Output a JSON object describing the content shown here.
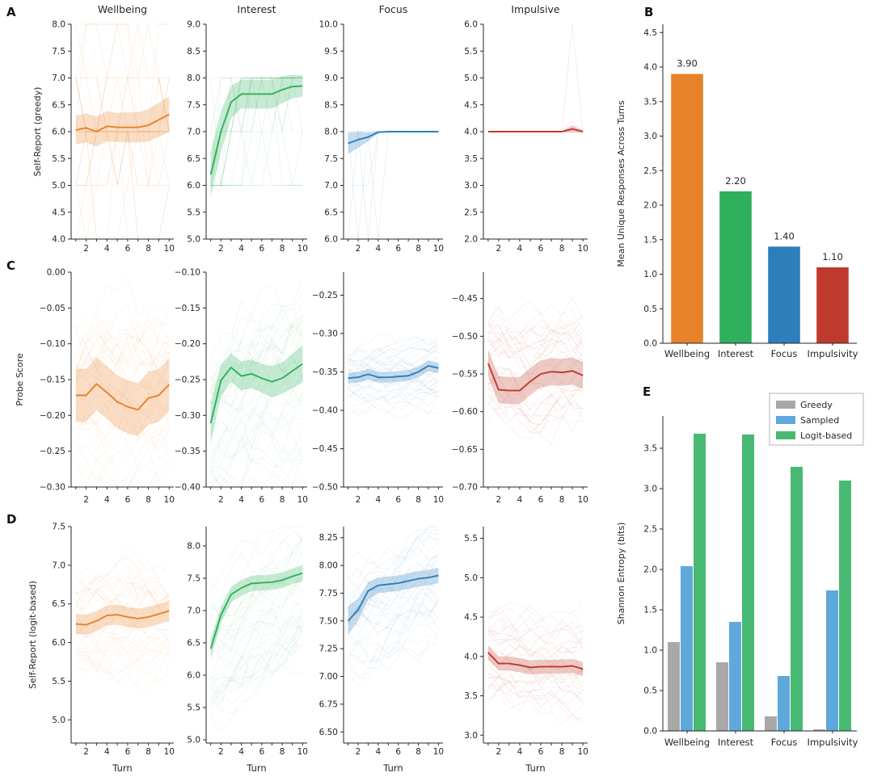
{
  "panels": {
    "A": "A",
    "B": "B",
    "C": "C",
    "D": "D",
    "E": "E"
  },
  "colors": {
    "orange": "#E8822A",
    "green": "#2EB05C",
    "blue": "#2E7EBC",
    "red": "#BE3A2C",
    "gray": "#A8A8A8",
    "skyblue": "#5FA8DC",
    "green_e": "#47B972",
    "axis": "#262626",
    "text": "#262626"
  },
  "chart_data": {
    "rows": [
      {
        "panel": "A",
        "ylabel": "Self-Report (greedy)",
        "show_titles": true,
        "xlabel": null,
        "x_tick_labels": [
          2,
          4,
          6,
          8,
          10
        ],
        "charts": [
          {
            "title": "Wellbeing",
            "color_key": "orange",
            "type": "line",
            "x": [
              1,
              2,
              3,
              4,
              5,
              6,
              7,
              8,
              9,
              10
            ],
            "mean": [
              6.03,
              6.07,
              6.0,
              6.1,
              6.08,
              6.08,
              6.08,
              6.12,
              6.22,
              6.32
            ],
            "band": [
              0.27,
              0.27,
              0.28,
              0.28,
              0.27,
              0.28,
              0.28,
              0.3,
              0.32,
              0.33
            ],
            "ylim": [
              4.0,
              8.0
            ],
            "yticks": [
              4.0,
              4.5,
              5.0,
              5.5,
              6.0,
              6.5,
              7.0,
              7.5,
              8.0
            ],
            "ydec": 1,
            "faint": {
              "mode": "int",
              "count": 22,
              "clamp": [
                4,
                8
              ]
            }
          },
          {
            "title": "Interest",
            "color_key": "green",
            "type": "line",
            "x": [
              1,
              2,
              3,
              4,
              5,
              6,
              7,
              8,
              9,
              10
            ],
            "mean": [
              6.2,
              7.0,
              7.55,
              7.7,
              7.7,
              7.7,
              7.7,
              7.78,
              7.84,
              7.85
            ],
            "band": [
              0.42,
              0.38,
              0.3,
              0.27,
              0.27,
              0.27,
              0.27,
              0.25,
              0.22,
              0.2
            ],
            "ylim": [
              5.0,
              9.0
            ],
            "yticks": [
              5.0,
              5.5,
              6.0,
              6.5,
              7.0,
              7.5,
              8.0,
              8.5,
              9.0
            ],
            "ydec": 1,
            "faint": {
              "mode": "int",
              "count": 16,
              "clamp": [
                6,
                8
              ]
            }
          },
          {
            "title": "Focus",
            "color_key": "blue",
            "type": "line",
            "x": [
              1,
              2,
              3,
              4,
              5,
              6,
              7,
              8,
              9,
              10
            ],
            "mean": [
              7.78,
              7.85,
              7.9,
              7.99,
              8.0,
              8.0,
              8.0,
              8.0,
              8.0,
              8.0
            ],
            "band": [
              0.2,
              0.15,
              0.08,
              0.02,
              0.005,
              0.005,
              0.005,
              0.005,
              0.005,
              0.005
            ],
            "ylim": [
              6.0,
              10.0
            ],
            "yticks": [
              6.0,
              6.5,
              7.0,
              7.5,
              8.0,
              8.5,
              9.0,
              9.5,
              10.0
            ],
            "ydec": 1,
            "faint": {
              "mode": "paths",
              "paths": [
                [
                  8,
                  6,
                  8,
                  8,
                  8,
                  8,
                  8,
                  8,
                  8,
                  8
                ],
                [
                  6,
                  8,
                  8,
                  8,
                  8,
                  8,
                  8,
                  8,
                  8,
                  8
                ],
                [
                  8,
                  8,
                  6,
                  8,
                  8,
                  8,
                  8,
                  8,
                  8,
                  8
                ],
                [
                  7,
                  7,
                  7,
                  8,
                  8,
                  8,
                  8,
                  8,
                  8,
                  8
                ],
                [
                  8,
                  8,
                  8,
                  6,
                  8,
                  8,
                  8,
                  8,
                  8,
                  8
                ]
              ]
            }
          },
          {
            "title": "Impulsive",
            "color_key": "red",
            "type": "line",
            "x": [
              1,
              2,
              3,
              4,
              5,
              6,
              7,
              8,
              9,
              10
            ],
            "mean": [
              4.0,
              4.0,
              4.0,
              4.0,
              4.0,
              4.0,
              4.0,
              4.0,
              4.05,
              4.0
            ],
            "band": [
              0.01,
              0.01,
              0.01,
              0.01,
              0.01,
              0.01,
              0.01,
              0.012,
              0.07,
              0.02
            ],
            "ylim": [
              2.0,
              6.0
            ],
            "yticks": [
              2.0,
              2.5,
              3.0,
              3.5,
              4.0,
              4.5,
              5.0,
              5.5,
              6.0
            ],
            "ydec": 1,
            "faint": {
              "mode": "paths",
              "paths": [
                [
                  4,
                  4,
                  4,
                  4,
                  4,
                  4,
                  4,
                  4,
                  6,
                  4
                ],
                [
                  4,
                  4,
                  4,
                  4,
                  4,
                  4,
                  4,
                  4,
                  4.2,
                  4
                ]
              ]
            }
          }
        ]
      },
      {
        "panel": "C",
        "ylabel": "Probe Score",
        "show_titles": false,
        "xlabel": null,
        "x_tick_labels": [
          2,
          4,
          6,
          8,
          10
        ],
        "charts": [
          {
            "title": null,
            "color_key": "orange",
            "type": "line",
            "x": [
              1,
              2,
              3,
              4,
              5,
              6,
              7,
              8,
              9,
              10
            ],
            "mean": [
              -0.172,
              -0.172,
              -0.156,
              -0.168,
              -0.181,
              -0.188,
              -0.192,
              -0.176,
              -0.172,
              -0.157
            ],
            "band": 0.037,
            "ylim": [
              -0.3,
              0.0
            ],
            "yticks": [
              0.0,
              -0.05,
              -0.1,
              -0.15,
              -0.2,
              -0.25,
              -0.3
            ],
            "ydec": 2,
            "faint": {
              "mode": "smooth",
              "count": 36,
              "amp": 0.1
            }
          },
          {
            "title": null,
            "color_key": "green",
            "type": "line",
            "x": [
              1,
              2,
              3,
              4,
              5,
              6,
              7,
              8,
              9,
              10
            ],
            "mean": [
              -0.311,
              -0.251,
              -0.233,
              -0.245,
              -0.242,
              -0.248,
              -0.253,
              -0.248,
              -0.238,
              -0.228
            ],
            "band": [
              0.028,
              0.022,
              0.02,
              0.02,
              0.02,
              0.02,
              0.022,
              0.022,
              0.024,
              0.026
            ],
            "ylim": [
              -0.4,
              -0.1
            ],
            "yticks": [
              -0.1,
              -0.15,
              -0.2,
              -0.25,
              -0.3,
              -0.35,
              -0.4
            ],
            "ydec": 2,
            "faint": {
              "mode": "smooth",
              "count": 36,
              "amp": 0.095
            }
          },
          {
            "title": null,
            "color_key": "blue",
            "type": "line",
            "x": [
              1,
              2,
              3,
              4,
              5,
              6,
              7,
              8,
              9,
              10
            ],
            "mean": [
              -0.358,
              -0.357,
              -0.353,
              -0.357,
              -0.357,
              -0.356,
              -0.355,
              -0.35,
              -0.342,
              -0.345
            ],
            "band": 0.007,
            "ylim": [
              -0.5,
              -0.22
            ],
            "yticks": [
              -0.25,
              -0.3,
              -0.35,
              -0.4,
              -0.45,
              -0.5
            ],
            "ydec": 2,
            "faint": {
              "mode": "smooth",
              "count": 36,
              "amp": 0.035
            }
          },
          {
            "title": null,
            "color_key": "red",
            "type": "line",
            "x": [
              1,
              2,
              3,
              4,
              5,
              6,
              7,
              8,
              9,
              10
            ],
            "mean": [
              -0.536,
              -0.571,
              -0.572,
              -0.572,
              -0.56,
              -0.55,
              -0.547,
              -0.548,
              -0.546,
              -0.552
            ],
            "band": 0.018,
            "ylim": [
              -0.7,
              -0.415
            ],
            "yticks": [
              -0.45,
              -0.5,
              -0.55,
              -0.6,
              -0.65,
              -0.7
            ],
            "ydec": 2,
            "faint": {
              "mode": "smooth",
              "count": 36,
              "amp": 0.065
            }
          }
        ]
      },
      {
        "panel": "D",
        "ylabel": "Self-Report (logit-based)",
        "show_titles": false,
        "xlabel": "Turn",
        "x_tick_labels": [
          2,
          4,
          6,
          8,
          10
        ],
        "charts": [
          {
            "title": null,
            "color_key": "orange",
            "type": "line",
            "x": [
              1,
              2,
              3,
              4,
              5,
              6,
              7,
              8,
              9,
              10
            ],
            "mean": [
              6.24,
              6.23,
              6.28,
              6.35,
              6.36,
              6.33,
              6.31,
              6.33,
              6.37,
              6.41
            ],
            "band": 0.13,
            "ylim": [
              4.7,
              7.5
            ],
            "yticks": [
              5.0,
              5.5,
              6.0,
              6.5,
              7.0,
              7.5
            ],
            "ydec": 1,
            "faint": {
              "mode": "smooth",
              "count": 34,
              "amp": 0.6
            }
          },
          {
            "title": null,
            "color_key": "green",
            "type": "line",
            "x": [
              1,
              2,
              3,
              4,
              5,
              6,
              7,
              8,
              9,
              10
            ],
            "mean": [
              6.41,
              6.93,
              7.25,
              7.35,
              7.42,
              7.43,
              7.44,
              7.47,
              7.53,
              7.58
            ],
            "band": [
              0.15,
              0.13,
              0.12,
              0.12,
              0.12,
              0.12,
              0.12,
              0.12,
              0.12,
              0.13
            ],
            "ylim": [
              4.95,
              8.3
            ],
            "yticks": [
              5.0,
              5.5,
              6.0,
              6.5,
              7.0,
              7.5,
              8.0
            ],
            "ydec": 1,
            "faint": {
              "mode": "smooth",
              "count": 34,
              "amp": 0.85
            }
          },
          {
            "title": null,
            "color_key": "blue",
            "type": "line",
            "x": [
              1,
              2,
              3,
              4,
              5,
              6,
              7,
              8,
              9,
              10
            ],
            "mean": [
              7.5,
              7.6,
              7.77,
              7.82,
              7.83,
              7.84,
              7.86,
              7.88,
              7.89,
              7.91
            ],
            "band": [
              0.13,
              0.1,
              0.08,
              0.07,
              0.07,
              0.07,
              0.07,
              0.07,
              0.07,
              0.07
            ],
            "ylim": [
              6.4,
              8.35
            ],
            "yticks": [
              6.5,
              6.75,
              7.0,
              7.25,
              7.5,
              7.75,
              8.0,
              8.25
            ],
            "ydec": 2,
            "faint": {
              "mode": "smooth",
              "count": 34,
              "amp": 0.42
            }
          },
          {
            "title": null,
            "color_key": "red",
            "type": "line",
            "x": [
              1,
              2,
              3,
              4,
              5,
              6,
              7,
              8,
              9,
              10
            ],
            "mean": [
              4.05,
              3.91,
              3.91,
              3.89,
              3.86,
              3.87,
              3.87,
              3.87,
              3.88,
              3.84
            ],
            "band": 0.09,
            "ylim": [
              2.9,
              5.65
            ],
            "yticks": [
              3.0,
              3.5,
              4.0,
              4.5,
              5.0,
              5.5
            ],
            "ydec": 1,
            "faint": {
              "mode": "smooth",
              "count": 34,
              "amp": 0.5
            }
          }
        ]
      }
    ],
    "panel_B": {
      "type": "bar",
      "ylabel": "Mean Unique Responses Across Turns",
      "categories": [
        "Wellbeing",
        "Interest",
        "Focus",
        "Impulsivity"
      ],
      "values": [
        3.9,
        2.2,
        1.4,
        1.1
      ],
      "value_labels": [
        "3.90",
        "2.20",
        "1.40",
        "1.10"
      ],
      "bar_color_keys": [
        "orange",
        "green",
        "blue",
        "red"
      ],
      "ylim": [
        0,
        4.62
      ],
      "yticks": [
        0.0,
        0.5,
        1.0,
        1.5,
        2.0,
        2.5,
        3.0,
        3.5,
        4.0,
        4.5
      ],
      "ydec": 1
    },
    "panel_E": {
      "type": "grouped-bar",
      "ylabel": "Shannon Entropy (bits)",
      "categories": [
        "Wellbeing",
        "Interest",
        "Focus",
        "Impulsivity"
      ],
      "series": [
        {
          "name": "Greedy",
          "color_key": "gray",
          "values": [
            1.1,
            0.85,
            0.18,
            0.02
          ]
        },
        {
          "name": "Sampled",
          "color_key": "skyblue",
          "values": [
            2.04,
            1.35,
            0.68,
            1.74
          ]
        },
        {
          "name": "Logit-based",
          "color_key": "green_e",
          "values": [
            3.68,
            3.67,
            3.27,
            3.1
          ]
        }
      ],
      "ylim": [
        0,
        3.9
      ],
      "yticks": [
        0.0,
        0.5,
        1.0,
        1.5,
        2.0,
        2.5,
        3.0,
        3.5
      ],
      "ydec": 1,
      "legend_position": "upper right"
    }
  }
}
